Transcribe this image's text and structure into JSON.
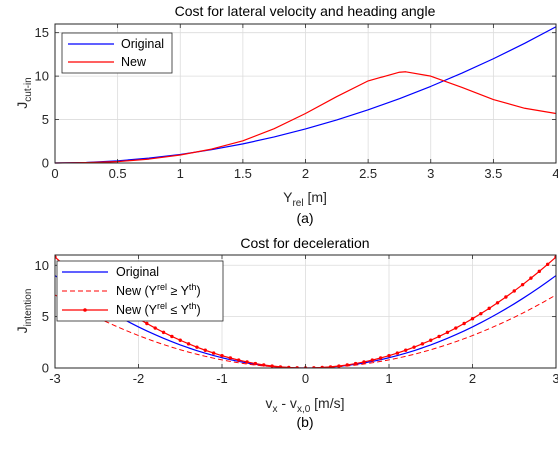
{
  "chart_data": [
    {
      "type": "line",
      "title": "Cost for lateral velocity and heading angle",
      "xlabel_main": "Y",
      "xlabel_sub": "rel",
      "xlabel_unit": " [m]",
      "ylabel_main": "J",
      "ylabel_sub": "cut-in",
      "caption": "(a)",
      "xlim": [
        0,
        4
      ],
      "ylim": [
        0,
        16
      ],
      "xticks": [
        0,
        0.5,
        1,
        1.5,
        2,
        2.5,
        3,
        3.5,
        4
      ],
      "xtick_labels": [
        "0",
        "0.5",
        "1",
        "1.5",
        "2",
        "2.5",
        "3",
        "3.5",
        "4"
      ],
      "yticks": [
        0,
        5,
        10,
        15
      ],
      "ytick_labels": [
        "0",
        "5",
        "10",
        "15"
      ],
      "grid": true,
      "legend_position": "top-left",
      "series": [
        {
          "name": "Original",
          "color": "#0000ff",
          "x": [
            0,
            0.25,
            0.5,
            0.75,
            1,
            1.25,
            1.5,
            1.75,
            2,
            2.25,
            2.5,
            2.75,
            3,
            3.25,
            3.5,
            3.75,
            4
          ],
          "y": [
            0,
            0.06,
            0.25,
            0.56,
            0.98,
            1.53,
            2.2,
            3.0,
            3.92,
            4.96,
            6.12,
            7.41,
            8.82,
            10.35,
            12.0,
            13.78,
            15.68
          ]
        },
        {
          "name": "New",
          "color": "#ff0000",
          "x": [
            0,
            0.25,
            0.5,
            0.75,
            1,
            1.25,
            1.5,
            1.75,
            2,
            2.25,
            2.5,
            2.75,
            2.8,
            3,
            3.25,
            3.5,
            3.75,
            4
          ],
          "y": [
            0,
            0.04,
            0.16,
            0.45,
            0.92,
            1.6,
            2.55,
            3.95,
            5.7,
            7.65,
            9.45,
            10.45,
            10.5,
            10.0,
            8.7,
            7.3,
            6.3,
            5.7
          ]
        }
      ]
    },
    {
      "type": "line",
      "title": "Cost for deceleration",
      "xlabel_a": "v",
      "xlabel_a_sub": "x",
      "xlabel_mid": " - v",
      "xlabel_b_sub": "x,0",
      "xlabel_unit": " [m/s]",
      "ylabel_main": "J",
      "ylabel_sub": "intention",
      "caption": "(b)",
      "xlim": [
        -3,
        3
      ],
      "ylim": [
        0,
        11
      ],
      "xticks": [
        -3,
        -2,
        -1,
        0,
        1,
        2,
        3
      ],
      "xtick_labels": [
        "-3",
        "-2",
        "-1",
        "0",
        "1",
        "2",
        "3"
      ],
      "yticks": [
        0,
        5,
        10
      ],
      "ytick_labels": [
        "0",
        "5",
        "10"
      ],
      "grid": true,
      "legend_position": "top-left",
      "legend": [
        {
          "text": "Original"
        },
        {
          "text": "New (Y",
          "sup": "rel",
          "mid": " ≥ Y",
          "sup2": "th",
          "end": ")"
        },
        {
          "text": "New (Y",
          "sup": "rel",
          "mid": " ≤ Y",
          "sup2": "th",
          "end": ")"
        }
      ],
      "series": [
        {
          "name": "Original",
          "color": "#0000ff",
          "style": "solid",
          "coef": 1.0
        },
        {
          "name": "New (Yrel ≥ Yth)",
          "color": "#ff0000",
          "style": "dashed",
          "coef": 0.79
        },
        {
          "name": "New (Yrel ≤ Yth)",
          "color": "#ff0000",
          "style": "solid-dot",
          "coef": 1.2
        }
      ],
      "x_samples": [
        -3,
        -2.9,
        -2.8,
        -2.7,
        -2.6,
        -2.5,
        -2.4,
        -2.3,
        -2.2,
        -2.1,
        -2,
        -1.9,
        -1.8,
        -1.7,
        -1.6,
        -1.5,
        -1.4,
        -1.3,
        -1.2,
        -1.1,
        -1,
        -0.9,
        -0.8,
        -0.7,
        -0.6,
        -0.5,
        -0.4,
        -0.3,
        -0.2,
        -0.1,
        0,
        0.1,
        0.2,
        0.3,
        0.4,
        0.5,
        0.6,
        0.7,
        0.8,
        0.9,
        1,
        1.1,
        1.2,
        1.3,
        1.4,
        1.5,
        1.6,
        1.7,
        1.8,
        1.9,
        2,
        2.1,
        2.2,
        2.3,
        2.4,
        2.5,
        2.6,
        2.7,
        2.8,
        2.9,
        3
      ]
    }
  ]
}
